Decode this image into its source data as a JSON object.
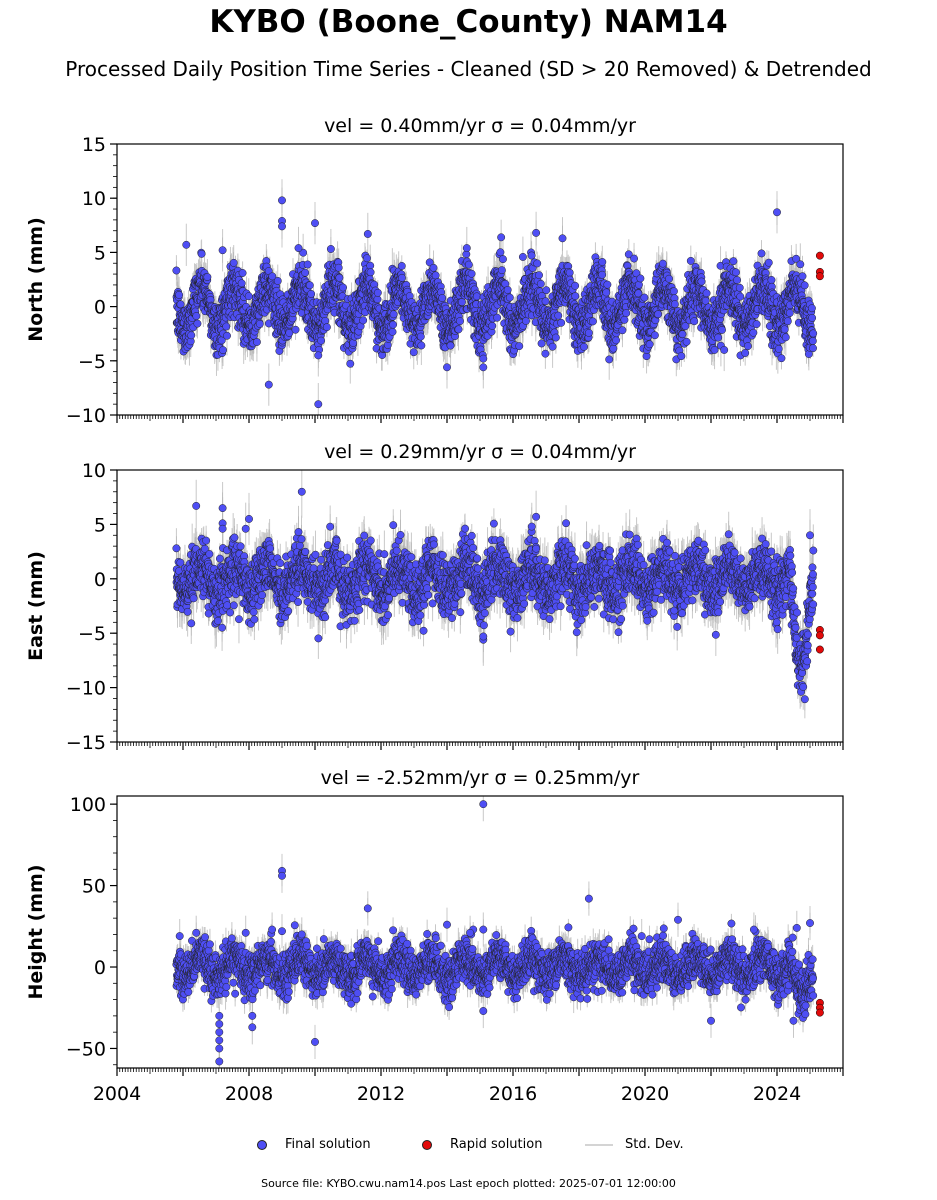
{
  "header": {
    "title": "KYBO (Boone_County) NAM14",
    "subtitle": "Processed Daily Position Time Series - Cleaned (SD > 20 Removed) & Detrended"
  },
  "legend": {
    "final_label": "Final solution",
    "rapid_label": "Rapid solution",
    "std_label": "Std. Dev."
  },
  "footer": {
    "source": "Source file: KYBO.cwu.nam14.pos  Last epoch plotted: 2025-07-01 12:00:00"
  },
  "colors": {
    "final": "#4e4ef4",
    "rapid": "#e10a0a",
    "std": "#c8c8c8",
    "edge": "#222222"
  },
  "chart_data": [
    {
      "type": "scatter",
      "panel": "north",
      "title": "vel = 0.40mm/yr   σ = 0.04mm/yr",
      "ylabel": "North (mm)",
      "xlim": [
        2004,
        2026
      ],
      "ylim": [
        -10,
        15
      ],
      "yticks": [
        -10,
        -5,
        0,
        5,
        10,
        15
      ],
      "ytick_labels": [
        "−10",
        "−5",
        "0",
        "5",
        "10",
        "15"
      ],
      "series": [
        {
          "name": "Final solution",
          "model": {
            "x_start": 2005.8,
            "x_end": 2025.1,
            "amplitude": 2.0,
            "noise": 1.2,
            "std": 1.3
          },
          "outliers": [
            [
              2006.1,
              5.7
            ],
            [
              2007.2,
              5.2
            ],
            [
              2008.6,
              -7.2
            ],
            [
              2009.0,
              9.8
            ],
            [
              2009.0,
              7.9
            ],
            [
              2009.0,
              7.4
            ],
            [
              2009.5,
              5.4
            ],
            [
              2010.0,
              7.7
            ],
            [
              2010.1,
              -9.0
            ],
            [
              2010.1,
              -4.5
            ],
            [
              2011.6,
              6.7
            ],
            [
              2014.0,
              -5.6
            ],
            [
              2014.6,
              5.4
            ],
            [
              2015.1,
              -5.6
            ],
            [
              2015.1,
              -4.8
            ],
            [
              2016.7,
              6.8
            ],
            [
              2017.2,
              -3.7
            ],
            [
              2017.5,
              6.3
            ],
            [
              2022.4,
              -4.0
            ],
            [
              2024.0,
              8.7
            ]
          ]
        },
        {
          "name": "Rapid solution",
          "points": [
            [
              2025.3,
              4.7
            ],
            [
              2025.3,
              3.2
            ],
            [
              2025.3,
              2.8
            ]
          ]
        }
      ]
    },
    {
      "type": "scatter",
      "panel": "east",
      "title": "vel = 0.29mm/yr   σ = 0.04mm/yr",
      "ylabel": "East (mm)",
      "xlim": [
        2004,
        2026
      ],
      "ylim": [
        -15,
        10
      ],
      "yticks": [
        -15,
        -10,
        -5,
        0,
        5,
        10
      ],
      "ytick_labels": [
        "−15",
        "−10",
        "−5",
        "0",
        "5",
        "10"
      ],
      "series": [
        {
          "name": "Final solution",
          "model": {
            "x_start": 2005.8,
            "x_end": 2025.1,
            "amplitude": 1.2,
            "noise": 1.3,
            "std": 1.6,
            "dip": {
              "start": 2024.4,
              "end": 2025.1,
              "depth": 9.0
            }
          },
          "outliers": [
            [
              2006.4,
              6.7
            ],
            [
              2007.2,
              6.5
            ],
            [
              2007.2,
              5.1
            ],
            [
              2007.2,
              4.6
            ],
            [
              2007.9,
              4.6
            ],
            [
              2008.0,
              5.5
            ],
            [
              2009.6,
              8.0
            ],
            [
              2009.5,
              4.3
            ],
            [
              2015.1,
              -5.6
            ],
            [
              2015.1,
              -5.3
            ],
            [
              2016.7,
              5.7
            ],
            [
              2025.0,
              4.0
            ],
            [
              2025.1,
              2.6
            ]
          ]
        },
        {
          "name": "Rapid solution",
          "points": [
            [
              2025.3,
              -4.7
            ],
            [
              2025.3,
              -5.2
            ],
            [
              2025.3,
              -6.5
            ]
          ]
        }
      ]
    },
    {
      "type": "scatter",
      "panel": "height",
      "title": "vel = -2.52mm/yr   σ = 0.25mm/yr",
      "ylabel": "Height (mm)",
      "xlim": [
        2004,
        2026
      ],
      "ylim": [
        -62,
        105
      ],
      "yticks": [
        -50,
        0,
        50,
        100
      ],
      "ytick_labels": [
        "−50",
        "0",
        "50",
        "100"
      ],
      "xticks": [
        2004,
        2008,
        2012,
        2016,
        2020,
        2024
      ],
      "xtick_labels": [
        "2004",
        "2008",
        "2012",
        "2016",
        "2020",
        "2024"
      ],
      "series": [
        {
          "name": "Final solution",
          "model": {
            "x_start": 2005.8,
            "x_end": 2025.1,
            "amplitude": 6.0,
            "noise": 6.5,
            "std": 7.0,
            "dip": {
              "start": 2024.4,
              "end": 2025.1,
              "depth": 18.0
            }
          },
          "outliers": [
            [
              2005.9,
              19.0
            ],
            [
              2006.4,
              21.0
            ],
            [
              2007.1,
              -30.0
            ],
            [
              2007.1,
              -35.0
            ],
            [
              2007.1,
              -40.0
            ],
            [
              2007.1,
              -45.0
            ],
            [
              2007.1,
              -50.0
            ],
            [
              2007.1,
              -58.0
            ],
            [
              2007.9,
              21.0
            ],
            [
              2008.1,
              -30.0
            ],
            [
              2008.1,
              -37.0
            ],
            [
              2008.7,
              23.0
            ],
            [
              2009.0,
              59.0
            ],
            [
              2009.0,
              56.0
            ],
            [
              2009.0,
              22.0
            ],
            [
              2009.6,
              20.0
            ],
            [
              2010.0,
              -46.0
            ],
            [
              2011.6,
              36.0
            ],
            [
              2014.0,
              26.0
            ],
            [
              2014.7,
              21.0
            ],
            [
              2015.1,
              100.0
            ],
            [
              2015.1,
              23.0
            ],
            [
              2015.1,
              -27.0
            ],
            [
              2018.3,
              42.0
            ],
            [
              2019.9,
              19.0
            ],
            [
              2021.0,
              29.0
            ],
            [
              2022.0,
              -33.0
            ],
            [
              2023.3,
              23.0
            ],
            [
              2024.5,
              -33.0
            ],
            [
              2025.0,
              27.0
            ],
            [
              2024.6,
              24.0
            ]
          ]
        },
        {
          "name": "Rapid solution",
          "points": [
            [
              2025.3,
              -22.0
            ],
            [
              2025.3,
              -25.0
            ],
            [
              2025.3,
              -28.0
            ]
          ]
        }
      ]
    }
  ]
}
